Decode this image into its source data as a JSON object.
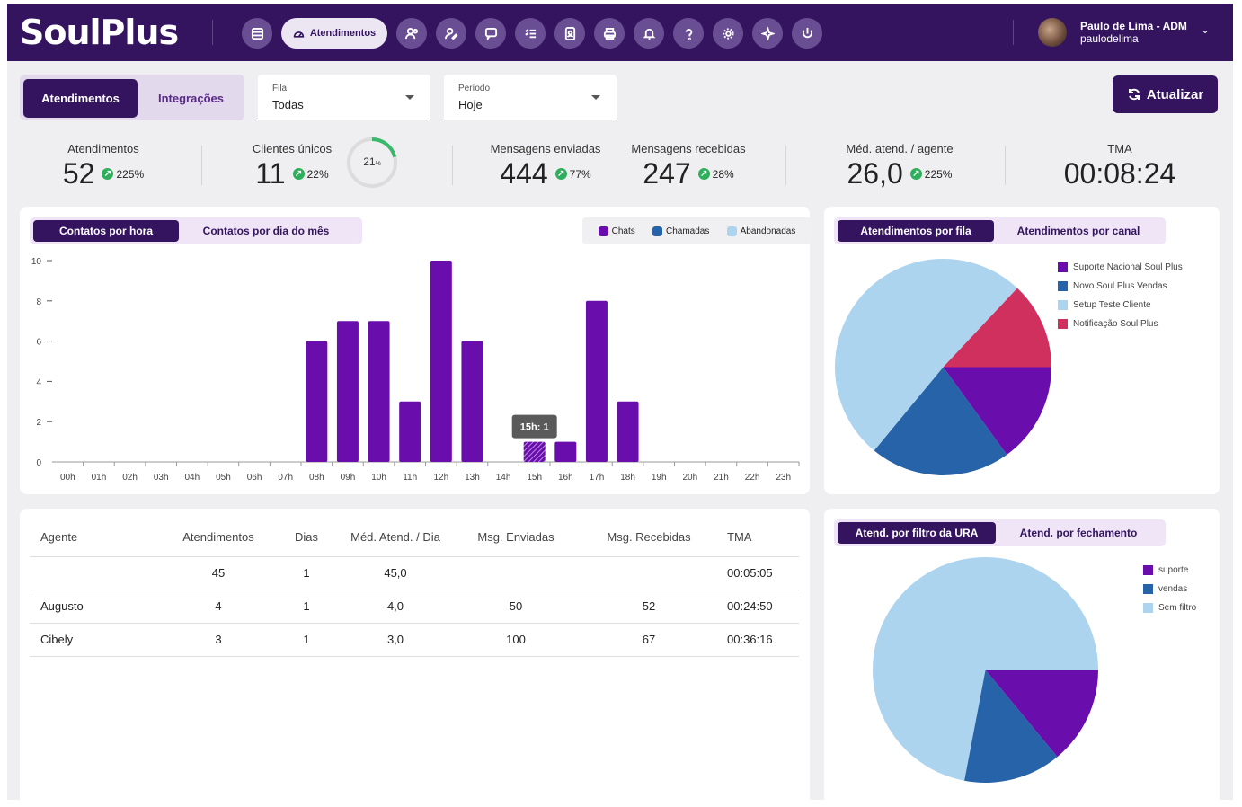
{
  "brand": {
    "name": "SoulPlus"
  },
  "nav": {
    "active_label": "Atendimentos"
  },
  "user": {
    "name": "Paulo de Lima - ADM",
    "login": "paulodelima"
  },
  "view_tabs": {
    "active": "Atendimentos",
    "other": "Integrações"
  },
  "filters": {
    "queue": {
      "label": "Fila",
      "value": "Todas"
    },
    "period": {
      "label": "Período",
      "value": "Hoje"
    }
  },
  "refresh_label": "Atualizar",
  "stats": {
    "atendimentos": {
      "title": "Atendimentos",
      "value": "52",
      "change": "225%"
    },
    "clientes": {
      "title": "Clientes únicos",
      "value": "11",
      "change": "22%",
      "ring_value": "21",
      "ring_unit": "%",
      "ring_fraction": 0.21
    },
    "enviadas": {
      "title": "Mensagens enviadas",
      "value": "444",
      "change": "77%"
    },
    "recebidas": {
      "title": "Mensagens recebidas",
      "value": "247",
      "change": "28%"
    },
    "media": {
      "title": "Méd. atend. / agente",
      "value": "26,0",
      "change": "225%"
    },
    "tma": {
      "title": "TMA",
      "value": "00:08:24"
    }
  },
  "hour_chart": {
    "tab_active": "Contatos por hora",
    "tab_other": "Contatos por dia do mês",
    "legend": [
      {
        "label": "Chats",
        "color": "#6a0dad"
      },
      {
        "label": "Chamadas",
        "color": "#2763a8"
      },
      {
        "label": "Abandonadas",
        "color": "#acd4ef"
      }
    ],
    "tooltip": "15h: 1"
  },
  "chart_data": [
    {
      "type": "bar",
      "title": "Contatos por hora",
      "categories": [
        "00h",
        "01h",
        "02h",
        "03h",
        "04h",
        "05h",
        "06h",
        "07h",
        "08h",
        "09h",
        "10h",
        "11h",
        "12h",
        "13h",
        "14h",
        "15h",
        "16h",
        "17h",
        "18h",
        "19h",
        "20h",
        "21h",
        "22h",
        "23h"
      ],
      "series": [
        {
          "name": "Chats",
          "values": [
            0,
            0,
            0,
            0,
            0,
            0,
            0,
            0,
            6,
            7,
            7,
            3,
            10,
            6,
            0,
            1,
            1,
            8,
            3,
            0,
            0,
            0,
            0,
            0
          ]
        }
      ],
      "yticks": [
        0,
        2,
        4,
        6,
        8,
        10
      ],
      "ylim": [
        0,
        10
      ],
      "highlight": "15h"
    },
    {
      "type": "pie",
      "title": "Atendimentos por fila",
      "tab_active": "Atendimentos por fila",
      "tab_other": "Atendimentos por canal",
      "labels": [
        "Suporte Nacional Soul Plus",
        "Novo Soul Plus Vendas",
        "Setup Teste Cliente",
        "Notificação Soul Plus"
      ],
      "values": [
        15,
        21,
        51,
        13
      ],
      "colors": [
        "#6a0dad",
        "#2763a8",
        "#acd4ef",
        "#d0305e"
      ]
    },
    {
      "type": "pie",
      "title": "Atend. por filtro da URA",
      "tab_active": "Atend. por filtro da URA",
      "tab_other": "Atend. por fechamento",
      "labels": [
        "suporte",
        "vendas",
        "Sem filtro"
      ],
      "values": [
        14,
        14,
        72
      ],
      "colors": [
        "#6a0dad",
        "#2763a8",
        "#acd4ef"
      ]
    }
  ],
  "agents_table": {
    "headers": [
      "Agente",
      "Atendimentos",
      "Dias",
      "Méd. Atend. / Dia",
      "Msg. Enviadas",
      "Msg. Recebidas",
      "TMA"
    ],
    "rows": [
      [
        "",
        "45",
        "1",
        "45,0",
        "",
        "",
        "00:05:05"
      ],
      [
        "Augusto",
        "4",
        "1",
        "4,0",
        "50",
        "52",
        "00:24:50"
      ],
      [
        "Cibely",
        "3",
        "1",
        "3,0",
        "100",
        "67",
        "00:36:16"
      ]
    ]
  }
}
